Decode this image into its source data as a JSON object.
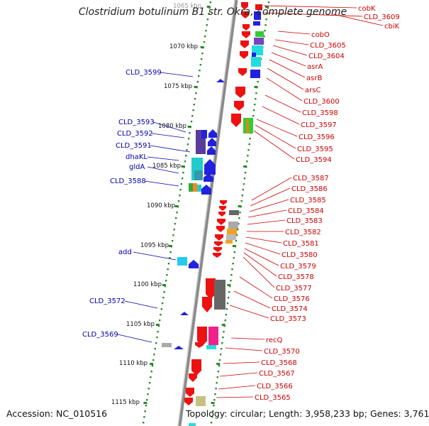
{
  "title": "Clostridium botulinum B1 str. Okra, complete genome",
  "footer": {
    "accession_label": "Accession:",
    "accession": "NC_010516",
    "topology_label": "Topology:",
    "topology": "circular",
    "length_label": "Length:",
    "length": "3,958,233 bp",
    "genes_label": "Genes:",
    "genes": "3,761"
  },
  "colors": {
    "reverse_label": "#cc0000",
    "forward_label": "#0000aa",
    "ticks": "#2a8a2a",
    "backbone": "#8a8a8a"
  },
  "scale_labels": [
    "1065 kbp",
    "1070 kbp",
    "1075 kbp",
    "1080 kbp",
    "1085 kbp",
    "1090 kbp",
    "1095 kbp",
    "1100 kbp",
    "1105 kbp",
    "1110 kbp",
    "1115 kbp"
  ],
  "right_labels": [
    "cobK",
    "CLD_3609",
    "cbiK",
    "cobO",
    "CLD_3605",
    "CLD_3604",
    "asrA",
    "asrB",
    "arsC",
    "CLD_3600",
    "CLD_3598",
    "CLD_3597",
    "CLD_3596",
    "CLD_3595",
    "CLD_3594",
    "CLD_3587",
    "CLD_3586",
    "CLD_3585",
    "CLD_3584",
    "CLD_3583",
    "CLD_3582",
    "CLD_3581",
    "CLD_3580",
    "CLD_3579",
    "CLD_3578",
    "CLD_3577",
    "CLD_3576",
    "CLD_3574",
    "CLD_3573",
    "recQ",
    "CLD_3570",
    "CLD_3568",
    "CLD_3567",
    "CLD_3566",
    "CLD_3565"
  ],
  "left_labels": [
    "CLD_3599",
    "CLD_3593",
    "CLD_3592",
    "CLD_3591",
    "dhaKL",
    "gldA",
    "CLD_3588",
    "add",
    "CLD_3572",
    "CLD_3569"
  ]
}
